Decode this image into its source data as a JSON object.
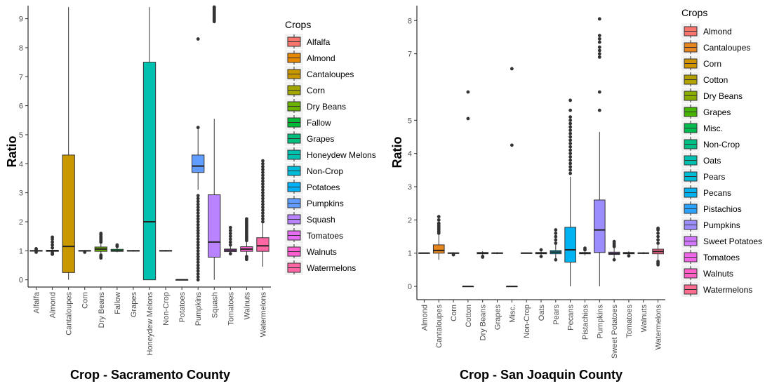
{
  "chart_data": [
    {
      "type": "box",
      "xlabel": "Crop - Sacramento County",
      "ylabel": "Ratio",
      "ylim": [
        -0.25,
        9.45
      ],
      "yticks": [
        0,
        1,
        2,
        3,
        4,
        5,
        6,
        7,
        8,
        9
      ],
      "legend_title": "Crops",
      "legend_position": "right",
      "categories": [
        "Alfalfa",
        "Almond",
        "Cantaloupes",
        "Corn",
        "Dry Beans",
        "Fallow",
        "Grapes",
        "Honeydew Melons",
        "Non-Crop",
        "Potatoes",
        "Pumpkins",
        "Squash",
        "Tomatoes",
        "Walnuts",
        "Watermelons"
      ],
      "colors": [
        "#F8766D",
        "#E58700",
        "#C99800",
        "#A3A500",
        "#6BB100",
        "#00BA38",
        "#00BF7D",
        "#00C0AF",
        "#00BCD8",
        "#00B0F6",
        "#619CFF",
        "#B983FF",
        "#E76BF3",
        "#FD61D1",
        "#FF67A4"
      ],
      "boxes": [
        {
          "q1": 0.99,
          "median": 1.0,
          "q3": 1.01,
          "whislo": 0.98,
          "whishi": 1.02,
          "outliers": [
            0.95,
            1.05,
            1.07
          ]
        },
        {
          "q1": 0.98,
          "median": 1.0,
          "q3": 1.02,
          "whislo": 0.96,
          "whishi": 1.04,
          "outliers": [
            0.88,
            0.9,
            0.93,
            1.1,
            1.2,
            1.3,
            1.4,
            1.47
          ]
        },
        {
          "q1": 0.25,
          "median": 1.15,
          "q3": 4.3,
          "whislo": 0.0,
          "whishi": 9.4,
          "outliers": []
        },
        {
          "q1": 0.99,
          "median": 1.0,
          "q3": 1.01,
          "whislo": 0.97,
          "whishi": 1.03,
          "outliers": [
            0.95
          ]
        },
        {
          "q1": 0.98,
          "median": 1.06,
          "q3": 1.13,
          "whislo": 0.9,
          "whishi": 1.25,
          "outliers": [
            0.75,
            0.8,
            0.85,
            1.3,
            1.35,
            1.4,
            1.45,
            1.5,
            1.55,
            1.6
          ]
        },
        {
          "q1": 0.98,
          "median": 1.0,
          "q3": 1.05,
          "whislo": 0.95,
          "whishi": 1.1,
          "outliers": [
            1.15,
            1.2
          ]
        },
        {
          "q1": 0.99,
          "median": 1.0,
          "q3": 1.01,
          "whislo": 0.97,
          "whishi": 1.03,
          "outliers": []
        },
        {
          "q1": 0.0,
          "median": 2.0,
          "q3": 7.5,
          "whislo": 0.0,
          "whishi": 9.4,
          "outliers": []
        },
        {
          "q1": 0.99,
          "median": 1.0,
          "q3": 1.01,
          "whislo": 0.98,
          "whishi": 1.03,
          "outliers": []
        },
        {
          "q1": 0.0,
          "median": 0.0,
          "q3": 0.0,
          "whislo": 0.0,
          "whishi": 0.0,
          "outliers": []
        },
        {
          "q1": 3.7,
          "median": 3.92,
          "q3": 4.3,
          "whislo": 3.1,
          "whishi": 5.2,
          "outliers": [
            0.0,
            0.1,
            0.2,
            0.3,
            0.4,
            0.5,
            0.6,
            0.7,
            0.8,
            0.9,
            1.0,
            1.1,
            1.2,
            1.3,
            1.4,
            1.5,
            1.6,
            1.7,
            1.8,
            1.9,
            2.0,
            2.1,
            2.2,
            2.3,
            2.4,
            2.5,
            2.6,
            2.7,
            2.8,
            2.9,
            5.25,
            8.3
          ]
        },
        {
          "q1": 0.78,
          "median": 1.3,
          "q3": 2.93,
          "whislo": 0.0,
          "whishi": 5.55,
          "outliers": [
            8.9,
            8.95,
            9.0,
            9.05,
            9.1,
            9.15,
            9.2,
            9.25,
            9.3,
            9.35,
            9.4
          ]
        },
        {
          "q1": 0.97,
          "median": 1.02,
          "q3": 1.06,
          "whislo": 0.88,
          "whishi": 1.15,
          "outliers": [
            0.9,
            1.2,
            1.3,
            1.4,
            1.5,
            1.6,
            1.7,
            1.8
          ]
        },
        {
          "q1": 0.98,
          "median": 1.06,
          "q3": 1.14,
          "whislo": 0.85,
          "whishi": 1.3,
          "outliers": [
            0.7,
            0.75,
            0.8,
            1.35,
            1.4,
            1.45,
            1.5,
            1.55,
            1.6,
            1.65,
            1.7,
            1.75,
            1.8,
            1.85,
            1.9,
            1.95,
            2.0,
            2.05,
            2.1
          ]
        },
        {
          "q1": 0.98,
          "median": 1.17,
          "q3": 1.45,
          "whislo": 0.45,
          "whishi": 1.95,
          "outliers": [
            2.0,
            2.1,
            2.2,
            2.3,
            2.4,
            2.5,
            2.6,
            2.7,
            2.8,
            2.9,
            3.0,
            3.1,
            3.2,
            3.3,
            3.4,
            3.5,
            3.6,
            3.7,
            3.8,
            3.9,
            4.0,
            4.1
          ]
        }
      ]
    },
    {
      "type": "box",
      "xlabel": "Crop - San Joaquin County",
      "ylabel": "Ratio",
      "ylim": [
        -0.4,
        8.45
      ],
      "yticks": [
        0,
        1,
        2,
        3,
        4,
        5,
        7,
        8
      ],
      "legend_title": "Crops",
      "legend_position": "right",
      "categories": [
        "Almond",
        "Cantaloupes",
        "Corn",
        "Cotton",
        "Dry Beans",
        "Grapes",
        "Misc.",
        "Non-Crop",
        "Oats",
        "Pears",
        "Pecans",
        "Pistachios",
        "Pumpkins",
        "Sweet Potatoes",
        "Tomatoes",
        "Walnuts",
        "Watermelons"
      ],
      "colors": [
        "#F8766D",
        "#E7851E",
        "#D09400",
        "#B2A100",
        "#89AC00",
        "#45B500",
        "#00BC51",
        "#00C087",
        "#00C0B2",
        "#00BCD6",
        "#00B3F2",
        "#29A3FF",
        "#9C8DFF",
        "#D277FF",
        "#F166E8",
        "#FF61C7",
        "#FF6C91"
      ],
      "boxes": [
        {
          "q1": 0.99,
          "median": 1.0,
          "q3": 1.01,
          "whislo": 0.98,
          "whishi": 1.02,
          "outliers": []
        },
        {
          "q1": 1.0,
          "median": 1.08,
          "q3": 1.25,
          "whislo": 0.8,
          "whishi": 1.55,
          "outliers": [
            1.6,
            1.65,
            1.7,
            1.75,
            1.8,
            1.85,
            1.9,
            2.0,
            2.1
          ]
        },
        {
          "q1": 0.99,
          "median": 1.0,
          "q3": 1.01,
          "whislo": 0.97,
          "whishi": 1.03,
          "outliers": [
            0.95
          ]
        },
        {
          "q1": 0.0,
          "median": 0.0,
          "q3": 0.0,
          "whislo": 0.0,
          "whishi": 0.0,
          "outliers": [
            5.05,
            5.85
          ]
        },
        {
          "q1": 0.98,
          "median": 1.0,
          "q3": 1.02,
          "whislo": 0.93,
          "whishi": 1.06,
          "outliers": [
            0.88,
            0.9
          ]
        },
        {
          "q1": 0.99,
          "median": 1.0,
          "q3": 1.01,
          "whislo": 0.97,
          "whishi": 1.03,
          "outliers": []
        },
        {
          "q1": 0.0,
          "median": 0.0,
          "q3": 0.0,
          "whislo": 0.0,
          "whishi": 0.0,
          "outliers": [
            4.25,
            6.55
          ]
        },
        {
          "q1": 0.99,
          "median": 1.0,
          "q3": 1.01,
          "whislo": 0.98,
          "whishi": 1.02,
          "outliers": []
        },
        {
          "q1": 0.98,
          "median": 1.0,
          "q3": 1.02,
          "whislo": 0.95,
          "whishi": 1.05,
          "outliers": [
            0.9,
            1.1
          ]
        },
        {
          "q1": 0.98,
          "median": 1.03,
          "q3": 1.08,
          "whislo": 0.85,
          "whishi": 1.25,
          "outliers": [
            0.8,
            1.3,
            1.4,
            1.5,
            1.6,
            1.7
          ]
        },
        {
          "q1": 0.73,
          "median": 1.1,
          "q3": 1.78,
          "whislo": 0.0,
          "whishi": 3.3,
          "outliers": [
            3.4,
            3.5,
            3.6,
            3.7,
            3.8,
            3.9,
            4.0,
            4.1,
            4.2,
            4.3,
            4.4,
            4.5,
            4.6,
            4.7,
            4.8,
            4.9,
            5.0,
            5.1,
            5.3,
            5.6
          ]
        },
        {
          "q1": 0.98,
          "median": 1.0,
          "q3": 1.02,
          "whislo": 0.93,
          "whishi": 1.07,
          "outliers": [
            1.1,
            1.15
          ]
        },
        {
          "q1": 1.02,
          "median": 1.7,
          "q3": 2.6,
          "whislo": 0.0,
          "whishi": 4.65,
          "outliers": [
            5.3,
            5.85,
            6.9,
            7.0,
            7.1,
            7.2,
            7.35,
            7.45,
            7.55,
            8.05
          ]
        },
        {
          "q1": 0.96,
          "median": 0.99,
          "q3": 1.03,
          "whislo": 0.85,
          "whishi": 1.15,
          "outliers": [
            0.8,
            1.2,
            1.25,
            1.3,
            1.35
          ]
        },
        {
          "q1": 0.98,
          "median": 1.0,
          "q3": 1.02,
          "whislo": 0.94,
          "whishi": 1.06,
          "outliers": [
            0.92
          ]
        },
        {
          "q1": 0.99,
          "median": 1.0,
          "q3": 1.01,
          "whislo": 0.97,
          "whishi": 1.03,
          "outliers": []
        },
        {
          "q1": 0.98,
          "median": 1.05,
          "q3": 1.12,
          "whislo": 0.8,
          "whishi": 1.25,
          "outliers": [
            0.65,
            0.7,
            0.75,
            1.3,
            1.4,
            1.5,
            1.6,
            1.7,
            1.75
          ]
        }
      ]
    }
  ]
}
